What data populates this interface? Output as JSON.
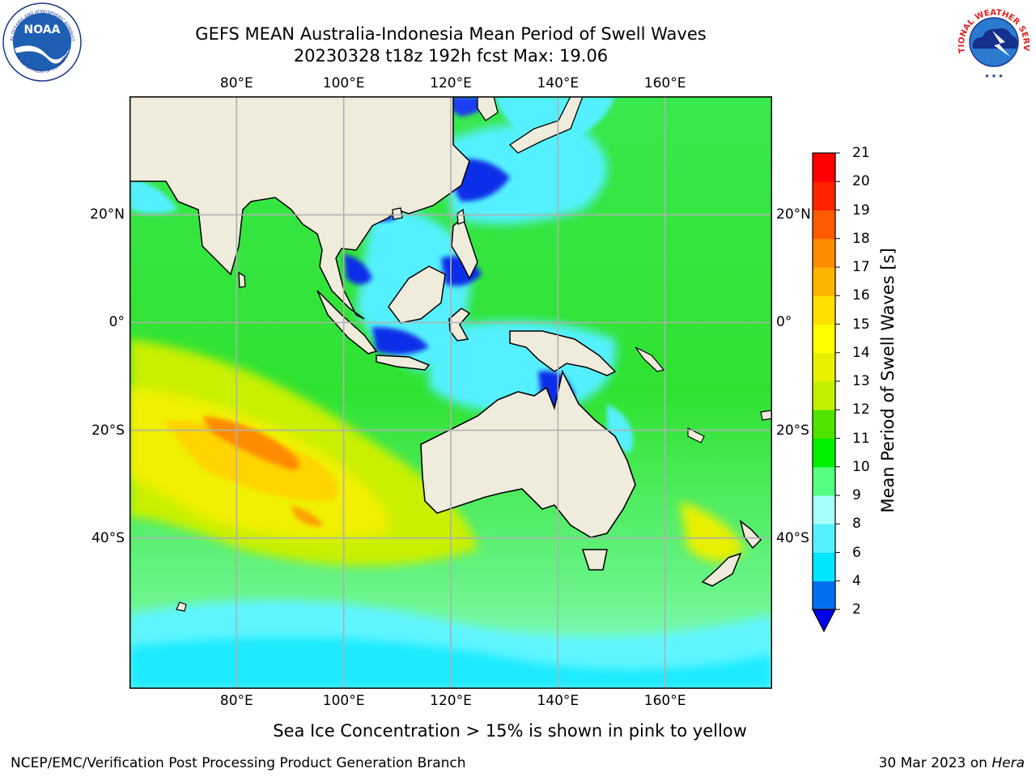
{
  "header": {
    "title_line1": "GEFS MEAN Australia-Indonesia Mean Period of Swell Waves",
    "title_line2": "20230328 t18z 192h fcst   Max: 19.06"
  },
  "logos": {
    "noaa_text": "NOAA",
    "noaa_ring_text": "NATIONAL OCEANIC AND ATMOSPHERIC ADMINISTRATION",
    "noaa_ring_bottom": "U.S. DEPARTMENT OF COMMERCE",
    "nws_ring_text": "NATIONAL WEATHER SERVICE"
  },
  "map": {
    "lon_ticks": [
      "80°E",
      "100°E",
      "120°E",
      "140°E",
      "160°E"
    ],
    "lat_ticks": [
      "20°N",
      "0°",
      "20°S",
      "40°S"
    ],
    "lon_values": [
      80,
      100,
      120,
      140,
      160
    ],
    "lat_values": [
      20,
      0,
      -20,
      -40
    ],
    "lon_range": [
      60,
      180
    ],
    "lat_range": [
      -68,
      42
    ],
    "colors": {
      "land": "#efecdc",
      "grid": "#b0b0b0"
    }
  },
  "colorbar": {
    "title": "Mean Period of Swell Waves [s]",
    "labels": [
      "21",
      "20",
      "19",
      "18",
      "17",
      "16",
      "15",
      "14",
      "13",
      "12",
      "11",
      "10",
      "9",
      "8",
      "6",
      "4",
      "2"
    ],
    "boundaries": [
      2,
      4,
      6,
      8,
      9,
      10,
      11,
      12,
      13,
      14,
      15,
      16,
      17,
      18,
      19,
      20,
      21
    ],
    "colors": [
      "#0070f0",
      "#00e6ff",
      "#55f0ff",
      "#a5fff8",
      "#55ff80",
      "#00f000",
      "#4ee400",
      "#c0f000",
      "#e8f000",
      "#ffff00",
      "#ffe000",
      "#ffb400",
      "#ff8c00",
      "#ff5a00",
      "#ff2400",
      "#ff0000"
    ],
    "under_color": "#0000e8"
  },
  "notes": {
    "ice": "Sea Ice Concentration > 15% is shown in pink to yellow"
  },
  "footer": {
    "left": "NCEP/EMC/Verification Post Processing Product Generation Branch",
    "date": "30 Mar 2023 on ",
    "host": "Hera"
  }
}
